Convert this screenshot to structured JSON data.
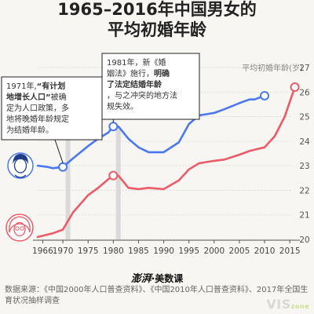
{
  "title_line1": "1965–2016年中国男女的",
  "title_line2": "平均初婚年龄",
  "chart_data": {
    "type": "line",
    "ylabel": "平均初婚年龄(岁)",
    "ylim": [
      20,
      27
    ],
    "yticks": [
      20,
      21,
      22,
      23,
      24,
      25,
      26,
      27
    ],
    "xlim": [
      1965,
      2017
    ],
    "xticks": [
      1966,
      1970,
      1975,
      1980,
      1985,
      1990,
      1995,
      2000,
      2005,
      2010,
      2015
    ],
    "series": [
      {
        "role": "male",
        "color": "#4a78f0",
        "x": [
          1965,
          1967,
          1968,
          1970,
          1972,
          1975,
          1977,
          1979,
          1980,
          1981,
          1983,
          1985,
          1987,
          1990,
          1993,
          1995,
          1997,
          2000,
          2002,
          2005,
          2007,
          2008,
          2010
        ],
        "values": [
          23.0,
          22.95,
          22.9,
          22.95,
          23.3,
          23.8,
          24.1,
          24.35,
          24.6,
          24.6,
          24.1,
          23.75,
          23.55,
          23.55,
          23.95,
          24.7,
          25.05,
          25.15,
          25.3,
          25.55,
          25.7,
          25.7,
          25.85
        ]
      },
      {
        "role": "female",
        "color": "#ec5b66",
        "x": [
          1965,
          1967,
          1968,
          1970,
          1972,
          1975,
          1977,
          1979,
          1980,
          1981,
          1983,
          1985,
          1987,
          1990,
          1993,
          1995,
          1997,
          2000,
          2002,
          2005,
          2007,
          2008,
          2010,
          2012,
          2014,
          2016
        ],
        "values": [
          20.1,
          20.2,
          20.25,
          20.4,
          21.1,
          21.8,
          22.1,
          22.45,
          22.6,
          22.6,
          22.1,
          22.05,
          22.1,
          22.05,
          22.4,
          22.85,
          23.1,
          23.2,
          23.25,
          23.45,
          23.6,
          23.65,
          23.75,
          24.2,
          25.0,
          26.2
        ]
      }
    ],
    "highlight_years": [
      1971,
      1981
    ],
    "markers": [
      {
        "series": 0,
        "x": 1970,
        "y": 22.95
      },
      {
        "series": 0,
        "x": 1980,
        "y": 24.6
      },
      {
        "series": 0,
        "x": 2010,
        "y": 25.85
      },
      {
        "series": 1,
        "x": 1980,
        "y": 22.6
      },
      {
        "series": 1,
        "x": 2016,
        "y": 26.2
      }
    ]
  },
  "annotations": {
    "a1971_pre": "1971年,",
    "a1971_bold": "“有计划地增长人口”",
    "a1971_post": "被确定为人口政策，多地将晚婚年龄规定为结婚年龄。",
    "a1981_pre": "1981年，新《婚姻法》施行，",
    "a1981_bold": "明确了法定结婚年龄",
    "a1981_post": "，与之冲突的地方法规失效。"
  },
  "brand_logo": "澎湃",
  "brand_name": "·美数课",
  "source": "数据来源：《中国2000年人口普查资料》、《中国2010年人口普查资料》、2017年全国生育状况抽样调查",
  "watermark_main": "VIS",
  "watermark_sub": "zone"
}
